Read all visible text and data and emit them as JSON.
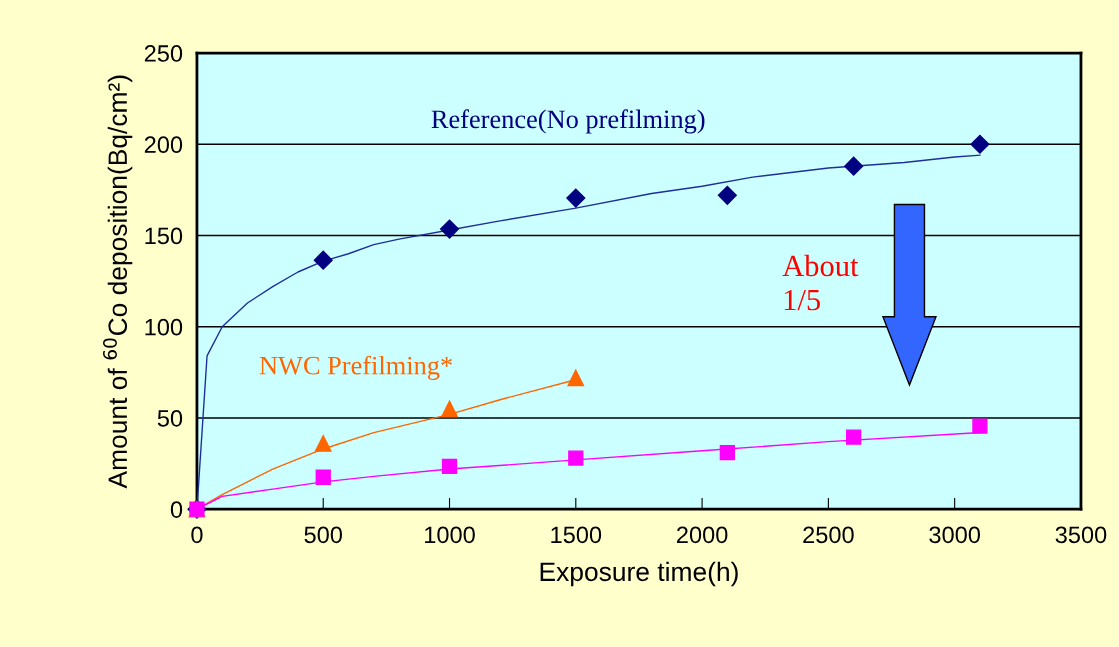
{
  "chart_data": {
    "type": "scatter",
    "xlabel": "Exposure time(h)",
    "ylabel": "Amount of $^{60}$Co deposition(Bq/cm²)",
    "xlim": [
      0,
      3500
    ],
    "xticks": [
      0,
      500,
      1000,
      1500,
      2000,
      2500,
      3000,
      3500
    ],
    "ylim": [
      0,
      250
    ],
    "yticks": [
      0,
      50,
      100,
      150,
      200,
      250
    ],
    "grid": "y",
    "annotations": [
      "About\n1/5"
    ],
    "series": [
      {
        "name": "Reference(No prefilming)",
        "marker": "diamond",
        "color": "#000080",
        "x": [
          0,
          500,
          1000,
          1500,
          2100,
          2600,
          3100
        ],
        "values": [
          0,
          136.5,
          153.5,
          170.5,
          172,
          188,
          200
        ]
      },
      {
        "name": "NWC Prefilming*",
        "marker": "triangle",
        "color": "#ff6600",
        "x": [
          0,
          500,
          1000,
          1500
        ],
        "values": [
          0,
          36,
          55,
          72
        ]
      },
      {
        "marker": "square",
        "color": "#ff00ff",
        "x": [
          0,
          500,
          1000,
          1500,
          2100,
          2600,
          3100
        ],
        "values": [
          0,
          17.5,
          23.5,
          28,
          31,
          39.5,
          45.5
        ]
      },
      {
        "type": "line",
        "color": "#1f2f99",
        "x": [
          0,
          40,
          100,
          200,
          300,
          400,
          500,
          600,
          700,
          800,
          1000,
          1200,
          1500,
          1800,
          2000,
          2200,
          2500,
          2800,
          3000,
          3100
        ],
        "values": [
          0,
          84,
          100,
          113,
          122,
          130,
          136,
          140,
          145,
          148,
          153,
          158,
          165,
          173,
          177,
          182,
          187,
          190,
          193,
          194
        ]
      },
      {
        "type": "line",
        "color": "#ff6600",
        "x": [
          0,
          100,
          200,
          300,
          500,
          700,
          1000,
          1200,
          1500
        ],
        "values": [
          0,
          8,
          15,
          22,
          33,
          42,
          52,
          60,
          71
        ]
      },
      {
        "type": "line",
        "color": "#ff00ff",
        "x": [
          0,
          100,
          300,
          500,
          700,
          1000,
          1500,
          2000,
          2500,
          3100
        ],
        "values": [
          0,
          7,
          11,
          15,
          18,
          22,
          27,
          32,
          37,
          42
        ]
      }
    ]
  }
}
